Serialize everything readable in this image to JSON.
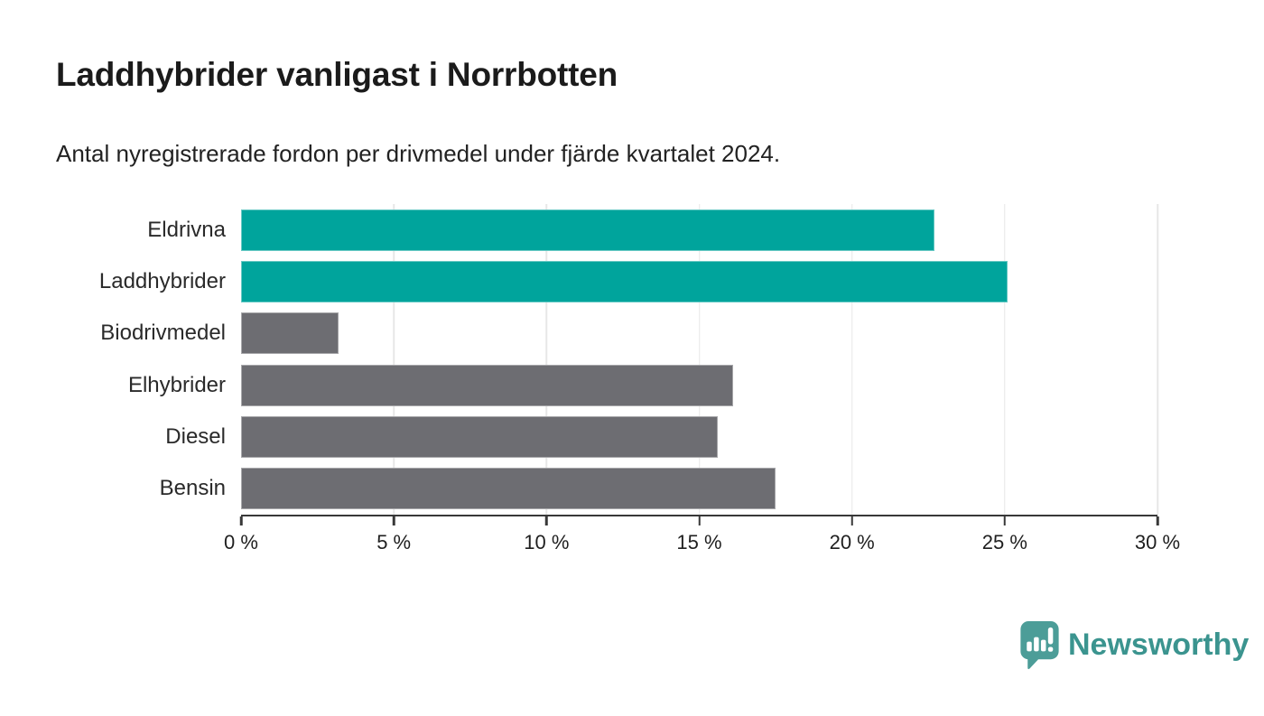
{
  "header": {
    "title": "Laddhybrider vanligast i Norrbotten",
    "subtitle": "Antal nyregistrerade fordon per drivmedel under fjärde kvartalet 2024."
  },
  "chart_data": {
    "type": "bar",
    "orientation": "horizontal",
    "title": "Laddhybrider vanligast i Norrbotten",
    "subtitle": "Antal nyregistrerade fordon per drivmedel under fjärde kvartalet 2024.",
    "categories": [
      "Eldrivna",
      "Laddhybrider",
      "Biodrivmedel",
      "Elhybrider",
      "Diesel",
      "Bensin"
    ],
    "values": [
      22.7,
      25.1,
      3.2,
      16.1,
      15.6,
      17.5
    ],
    "unit": "%",
    "highlighted": [
      true,
      true,
      false,
      false,
      false,
      false
    ],
    "xlabel": "",
    "ylabel": "",
    "xlim": [
      0,
      30
    ],
    "x_tick_values": [
      0,
      5,
      10,
      15,
      20,
      25,
      30
    ],
    "x_tick_labels": [
      "0 %",
      "5 %",
      "10 %",
      "15 %",
      "20 %",
      "25 %",
      "30 %"
    ],
    "grid": "vertical-gridlines-on",
    "legend_position": "none",
    "colors": {
      "highlight_bar": "#00a49c",
      "default_bar": "#6d6d72",
      "gridline": "#e7e7e7",
      "axis": "#383838"
    }
  },
  "footer": {
    "brand": "Newsworthy",
    "brand_color": "#3b948f",
    "logo_icon": "bar-chart-speech-bubble-icon",
    "logo_icon_color": "#4c9d98"
  }
}
